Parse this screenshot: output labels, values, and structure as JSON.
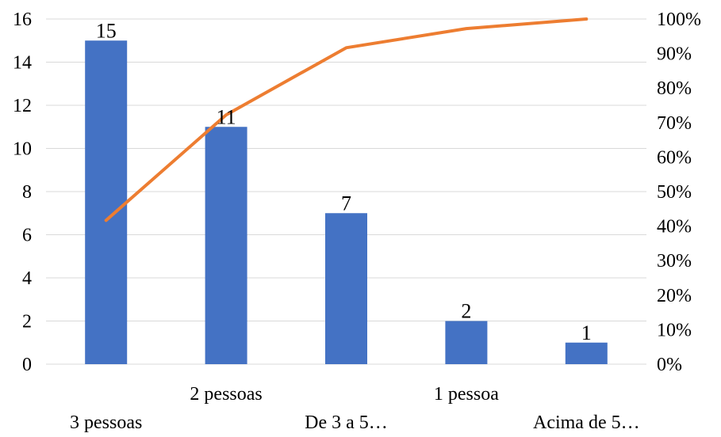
{
  "chart_data": {
    "type": "bar",
    "categories": [
      "3 pessoas",
      "2 pessoas",
      "De 3 a 5…",
      "1 pessoa",
      "Acima de 5…"
    ],
    "series": [
      {
        "type": "bar",
        "values": [
          15,
          11,
          7,
          2,
          1
        ],
        "color": "#4472C4"
      },
      {
        "type": "line",
        "axis": "right",
        "values": [
          0.4167,
          0.7222,
          0.9167,
          0.9722,
          1.0
        ],
        "color": "#ED7D31"
      }
    ],
    "data_labels": [
      "15",
      "11",
      "7",
      "2",
      "1"
    ],
    "ylim": [
      0,
      16
    ],
    "y_ticks": [
      "0",
      "2",
      "4",
      "6",
      "8",
      "10",
      "12",
      "14",
      "16"
    ],
    "y2lim": [
      0,
      1
    ],
    "y2_ticks": [
      "0%",
      "10%",
      "20%",
      "30%",
      "40%",
      "50%",
      "60%",
      "70%",
      "80%",
      "90%",
      "100%"
    ],
    "grid": true,
    "category_label_layout": "staggered"
  }
}
